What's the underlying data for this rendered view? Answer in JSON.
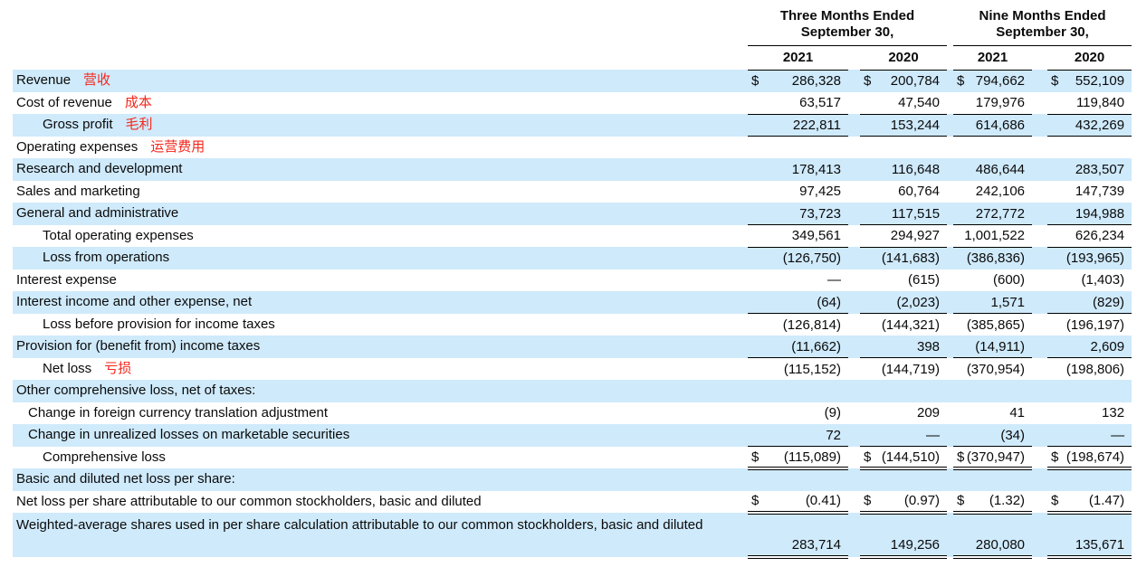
{
  "table": {
    "col_groups": [
      {
        "title_line1": "Three Months Ended",
        "title_line2": "September 30,",
        "years": [
          "2021",
          "2020"
        ]
      },
      {
        "title_line1": "Nine Months Ended",
        "title_line2": "September 30,",
        "years": [
          "2021",
          "2020"
        ]
      }
    ],
    "rows": [
      {
        "label": "Revenue",
        "annotation": "营收",
        "indent": 0,
        "shaded": true,
        "dollar": true,
        "values": [
          "286,328",
          "200,784",
          "794,662",
          "552,109"
        ],
        "rule": "none"
      },
      {
        "label": "Cost of revenue",
        "annotation": "成本",
        "indent": 0,
        "shaded": false,
        "dollar": false,
        "values": [
          "63,517",
          "47,540",
          "179,976",
          "119,840"
        ],
        "rule": "single"
      },
      {
        "label": "Gross profit",
        "annotation": "毛利",
        "indent": 2,
        "shaded": true,
        "dollar": false,
        "values": [
          "222,811",
          "153,244",
          "614,686",
          "432,269"
        ],
        "rule": "single"
      },
      {
        "label": "Operating expenses",
        "annotation": "运营费用",
        "indent": 0,
        "shaded": false,
        "dollar": false,
        "values": null,
        "rule": "none"
      },
      {
        "label": "Research and development",
        "indent": 0,
        "shaded": true,
        "dollar": false,
        "values": [
          "178,413",
          "116,648",
          "486,644",
          "283,507"
        ],
        "rule": "none"
      },
      {
        "label": "Sales and marketing",
        "indent": 0,
        "shaded": false,
        "dollar": false,
        "values": [
          "97,425",
          "60,764",
          "242,106",
          "147,739"
        ],
        "rule": "none"
      },
      {
        "label": "General and administrative",
        "indent": 0,
        "shaded": true,
        "dollar": false,
        "values": [
          "73,723",
          "117,515",
          "272,772",
          "194,988"
        ],
        "rule": "single"
      },
      {
        "label": "Total operating expenses",
        "indent": 2,
        "shaded": false,
        "dollar": false,
        "values": [
          "349,561",
          "294,927",
          "1,001,522",
          "626,234"
        ],
        "rule": "single"
      },
      {
        "label": "Loss from operations",
        "indent": 2,
        "shaded": true,
        "dollar": false,
        "values": [
          "(126,750)",
          "(141,683)",
          "(386,836)",
          "(193,965)"
        ],
        "rule": "none"
      },
      {
        "label": "Interest expense",
        "indent": 0,
        "shaded": false,
        "dollar": false,
        "values": [
          "—",
          "(615)",
          "(600)",
          "(1,403)"
        ],
        "rule": "none"
      },
      {
        "label": "Interest income and other expense, net",
        "indent": 0,
        "shaded": true,
        "dollar": false,
        "values": [
          "(64)",
          "(2,023)",
          "1,571",
          "(829)"
        ],
        "rule": "single"
      },
      {
        "label": "Loss before provision for income taxes",
        "indent": 2,
        "shaded": false,
        "dollar": false,
        "values": [
          "(126,814)",
          "(144,321)",
          "(385,865)",
          "(196,197)"
        ],
        "rule": "none"
      },
      {
        "label": "Provision for (benefit from) income taxes",
        "indent": 0,
        "shaded": true,
        "dollar": false,
        "values": [
          "(11,662)",
          "398",
          "(14,911)",
          "2,609"
        ],
        "rule": "single"
      },
      {
        "label": "Net loss",
        "annotation": "亏损",
        "indent": 2,
        "shaded": false,
        "dollar": false,
        "values": [
          "(115,152)",
          "(144,719)",
          "(370,954)",
          "(198,806)"
        ],
        "rule": "none"
      },
      {
        "label": "Other comprehensive loss, net of taxes:",
        "indent": 0,
        "shaded": true,
        "dollar": false,
        "values": null,
        "rule": "none"
      },
      {
        "label": "Change in foreign currency translation adjustment",
        "indent": 1,
        "shaded": false,
        "dollar": false,
        "values": [
          "(9)",
          "209",
          "41",
          "132"
        ],
        "rule": "none"
      },
      {
        "label": "Change in unrealized losses on marketable securities",
        "indent": 1,
        "shaded": true,
        "dollar": false,
        "values": [
          "72",
          "—",
          "(34)",
          "—"
        ],
        "rule": "single"
      },
      {
        "label": "Comprehensive loss",
        "indent": 2,
        "shaded": false,
        "dollar": true,
        "values": [
          "(115,089)",
          "(144,510)",
          "(370,947)",
          "(198,674)"
        ],
        "rule": "double"
      },
      {
        "label": "Basic and diluted net loss per share:",
        "indent": 0,
        "shaded": true,
        "dollar": false,
        "values": null,
        "rule": "none"
      },
      {
        "label": "Net loss per share attributable to our common stockholders, basic and diluted",
        "indent": 0,
        "shaded": false,
        "dollar": true,
        "values": [
          "(0.41)",
          "(0.97)",
          "(1.32)",
          "(1.47)"
        ],
        "rule": "double"
      },
      {
        "label": "Weighted-average shares used in per share calculation attributable to our common stockholders, basic and diluted",
        "indent": 0,
        "shaded": true,
        "dollar": false,
        "values": [
          "283,714",
          "149,256",
          "280,080",
          "135,671"
        ],
        "rule": "double",
        "tall": true
      }
    ],
    "colors": {
      "shaded_row_bg": "#cfeafb",
      "annotation_red": "#f4261b",
      "rule_color": "#000000",
      "text_color": "#0a0a0a"
    }
  }
}
